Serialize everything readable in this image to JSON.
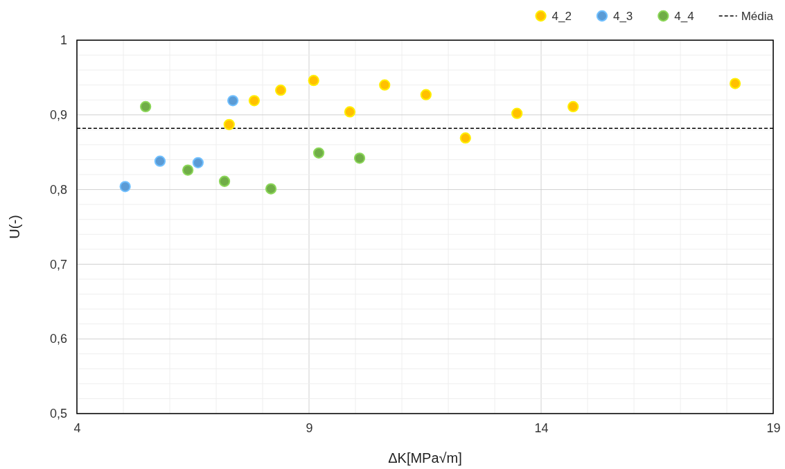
{
  "chart_data": {
    "type": "scatter",
    "xlabel": "ΔK[MPa√m]",
    "ylabel": "U(-)",
    "xlim": [
      4,
      19
    ],
    "xticks": [
      4,
      9,
      14,
      19
    ],
    "ylim": [
      0.5,
      1
    ],
    "yticks": [
      {
        "value": 0.5,
        "label": "0,5"
      },
      {
        "value": 0.6,
        "label": "0,6"
      },
      {
        "value": 0.7,
        "label": "0,7"
      },
      {
        "value": 0.8,
        "label": "0,8"
      },
      {
        "value": 0.9,
        "label": "0,9"
      },
      {
        "value": 1,
        "label": "1"
      }
    ],
    "grid": true,
    "legend": "top right",
    "marker": "circle",
    "series": [
      {
        "name": "4_2",
        "color": "#ffc000",
        "x": [
          7.28,
          7.82,
          8.39,
          9.1,
          9.88,
          10.63,
          11.52,
          12.37,
          13.48,
          14.69,
          18.18
        ],
        "values": [
          0.887,
          0.919,
          0.933,
          0.946,
          0.904,
          0.94,
          0.927,
          0.869,
          0.902,
          0.911,
          0.942
        ]
      },
      {
        "name": "4_3",
        "color": "#5b9bd5",
        "x": [
          5.04,
          5.79,
          6.61,
          7.36
        ],
        "values": [
          0.804,
          0.838,
          0.836,
          0.919
        ]
      },
      {
        "name": "4_4",
        "color": "#70ad47",
        "x": [
          5.48,
          6.39,
          7.18,
          8.18,
          9.21,
          10.09
        ],
        "values": [
          0.911,
          0.826,
          0.811,
          0.801,
          0.849,
          0.842
        ]
      }
    ],
    "ref_lines": [
      {
        "axis": "y",
        "value": 0.882,
        "label": "Média",
        "color": "#000000",
        "line_style": "dashed"
      }
    ]
  }
}
